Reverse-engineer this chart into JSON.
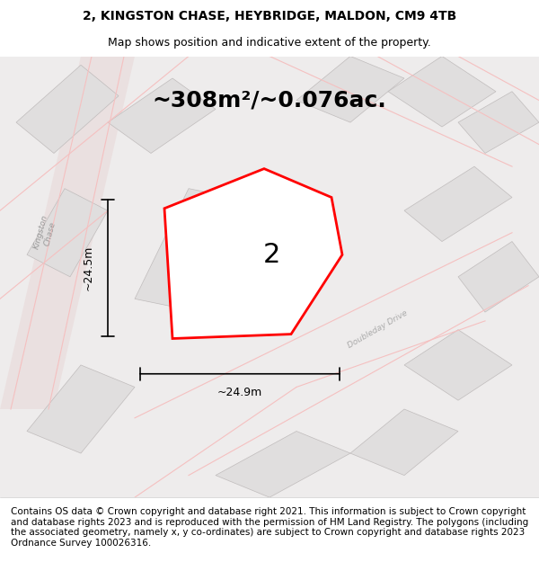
{
  "title_line1": "2, KINGSTON CHASE, HEYBRIDGE, MALDON, CM9 4TB",
  "title_line2": "Map shows position and indicative extent of the property.",
  "area_label": "~308m²/~0.076ac.",
  "plot_number": "2",
  "dim_vertical": "~24.5m",
  "dim_horizontal": "~24.9m",
  "footer_text": "Contains OS data © Crown copyright and database right 2021. This information is subject to Crown copyright and database rights 2023 and is reproduced with the permission of HM Land Registry. The polygons (including the associated geometry, namely x, y co-ordinates) are subject to Crown copyright and database rights 2023 Ordnance Survey 100026316.",
  "bg_color": "#f5f5f5",
  "map_bg": "#f0eeee",
  "plot_fill": "white",
  "plot_edge_color": "red",
  "building_fill": "#e0dede",
  "building_edge": "#c0bcbc",
  "road_color": "#f5c0c0",
  "street_color": "#ccbbbb",
  "title_fontsize": 10,
  "subtitle_fontsize": 9,
  "area_fontsize": 18,
  "plot_num_fontsize": 22,
  "footer_fontsize": 7.5
}
